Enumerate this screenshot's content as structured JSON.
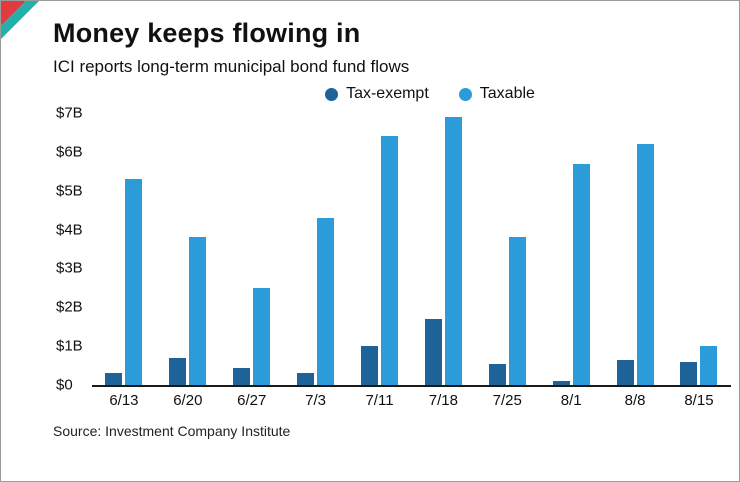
{
  "header": {
    "title": "Money keeps flowing in",
    "subtitle": "ICI reports long-term municipal bond fund flows"
  },
  "source": {
    "text": "Source: Investment Company Institute"
  },
  "colors": {
    "tax_exempt": "#1d6398",
    "taxable": "#2b9cd8",
    "corner_red": "#e23b3f",
    "corner_teal": "#23b0ab",
    "axis_line": "#1a1a1a",
    "border": "#9b9b9b"
  },
  "chart_data": {
    "type": "bar",
    "title": "Money keeps flowing in",
    "subtitle": "ICI reports long-term municipal bond fund flows",
    "categories": [
      "6/13",
      "6/20",
      "6/27",
      "7/3",
      "7/11",
      "7/18",
      "7/25",
      "8/1",
      "8/8",
      "8/15"
    ],
    "series": [
      {
        "name": "Tax-exempt",
        "color": "#1d6398",
        "values": [
          0.3,
          0.7,
          0.45,
          0.3,
          1.0,
          1.7,
          0.55,
          0.1,
          0.65,
          0.6
        ]
      },
      {
        "name": "Taxable",
        "color": "#2b9cd8",
        "values": [
          5.3,
          3.8,
          2.5,
          4.3,
          6.4,
          6.9,
          3.8,
          5.7,
          6.2,
          1.0
        ]
      }
    ],
    "xlabel": "",
    "ylabel": "",
    "ylim": [
      0,
      7
    ],
    "ytick_labels": [
      "$0",
      "$1B",
      "$2B",
      "$3B",
      "$4B",
      "$5B",
      "$6B",
      "$7B"
    ],
    "grid": false,
    "legend_position": "top"
  }
}
